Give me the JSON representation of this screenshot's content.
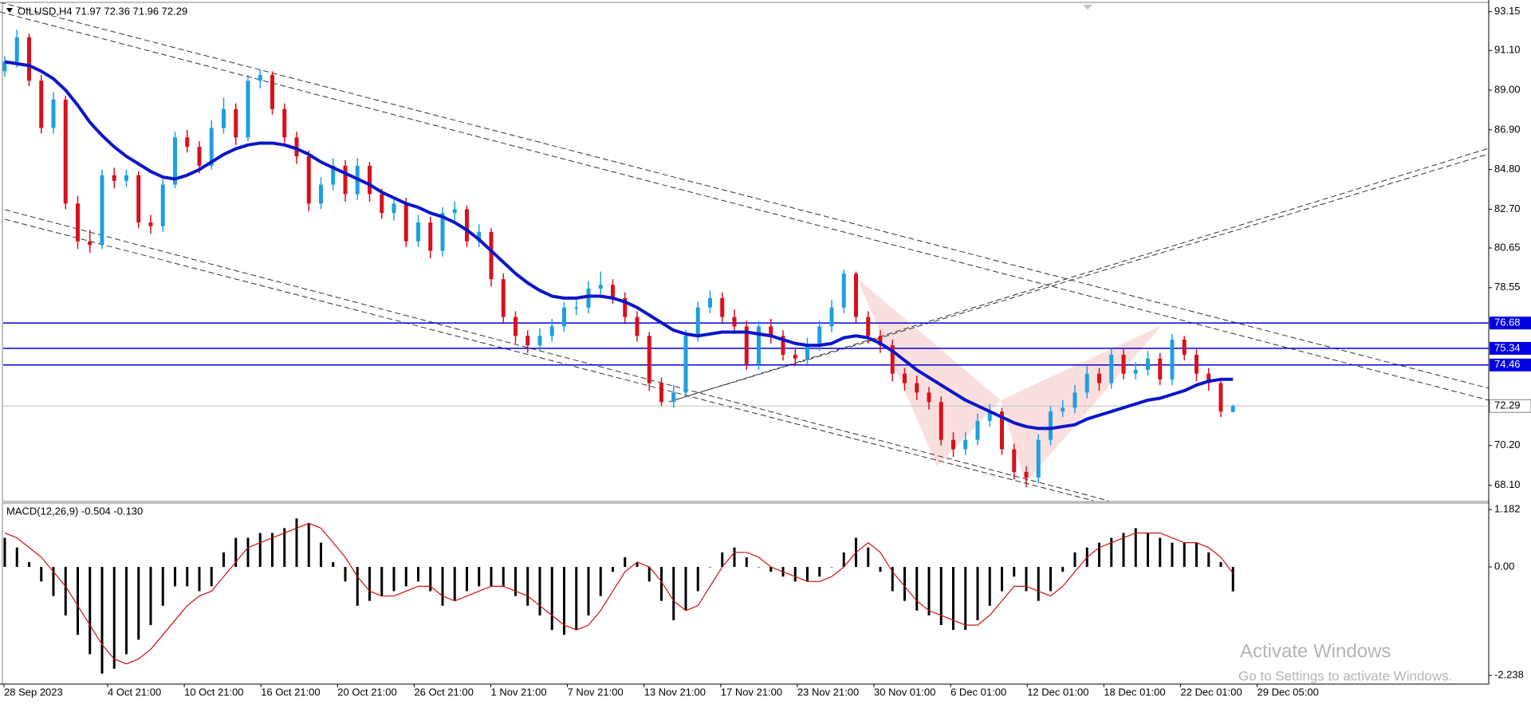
{
  "chart_data": {
    "type": "candlestick",
    "title": "OILUSD,H4  71.97 72.36 71.96 72.29",
    "up_color": "#1e9fe0",
    "down_color": "#d8101c",
    "ma_color": "#0a16c8",
    "candles": {
      "open": [
        90.0,
        90.5,
        91.8,
        89.5,
        87,
        88.5,
        83,
        81,
        80.8,
        84.5,
        84.2,
        84.5,
        82,
        81.8,
        84,
        86.5,
        86,
        85,
        87,
        88,
        86.5,
        89.5,
        89.8,
        88,
        86.5,
        85.5,
        83,
        84,
        85,
        83.5,
        85,
        83.5,
        82.5,
        83,
        81,
        82,
        80.5,
        82.5,
        82.7,
        81,
        81.5,
        79,
        77,
        76,
        75.5,
        76,
        76.5,
        77.5,
        77.5,
        78.5,
        78.7,
        78,
        77,
        76,
        73.5,
        72.5,
        73,
        76,
        77.5,
        78,
        77,
        76.5,
        74.5,
        76.5,
        76,
        75,
        74.8,
        75.5,
        76.5,
        77.5,
        79.3,
        77,
        76,
        75.5,
        74,
        73.5,
        73,
        72.5,
        70.5,
        70,
        70.5,
        71.5,
        72,
        70,
        68.8,
        68.5,
        70.5,
        72,
        72.2,
        73,
        74,
        73.5,
        75,
        74,
        74.2,
        74.8,
        73.7,
        75.8,
        75,
        74,
        73.5,
        71.97
      ],
      "high": [
        90.8,
        92.2,
        92.0,
        89.8,
        88.9,
        88.7,
        83.4,
        81.6,
        84.8,
        84.9,
        84.8,
        84.7,
        82.4,
        84.3,
        86.8,
        86.9,
        86.3,
        87.4,
        88.6,
        88.3,
        89.8,
        90.1,
        90.0,
        88.3,
        86.8,
        85.8,
        84.4,
        85.4,
        85.3,
        85.4,
        85.2,
        83.8,
        83.4,
        83.3,
        82.4,
        82.3,
        82.8,
        83.1,
        82.9,
        81.9,
        81.7,
        79.3,
        77.3,
        76.3,
        76.4,
        76.9,
        77.8,
        77.9,
        78.9,
        79.4,
        79.0,
        78.3,
        77.3,
        76.2,
        73.8,
        73.4,
        76.3,
        77.8,
        78.4,
        78.3,
        77.4,
        76.8,
        76.8,
        76.9,
        76.3,
        75.3,
        75.9,
        76.8,
        77.9,
        79.5,
        79.4,
        77.3,
        76.3,
        75.8,
        74.3,
        73.9,
        73.3,
        72.8,
        70.9,
        70.9,
        71.9,
        72.4,
        72.2,
        70.3,
        69.1,
        70.8,
        72.3,
        72.6,
        73.4,
        74.4,
        74.3,
        75.3,
        75.3,
        74.6,
        75.2,
        75.1,
        76.1,
        76.0,
        75.3,
        74.3,
        73.7,
        72.36
      ],
      "low": [
        89.7,
        90.2,
        89.2,
        86.7,
        86.7,
        82.7,
        80.6,
        80.4,
        80.6,
        83.8,
        83.9,
        81.7,
        81.4,
        81.5,
        83.8,
        85.7,
        84.6,
        84.8,
        86.7,
        86.1,
        86.3,
        89.1,
        87.7,
        86.2,
        85.1,
        82.6,
        82.7,
        83.7,
        83.1,
        83.2,
        83.1,
        82.2,
        82.1,
        80.7,
        80.7,
        80.1,
        80.2,
        82.1,
        80.7,
        80.7,
        78.6,
        76.7,
        75.6,
        75.1,
        75.2,
        75.7,
        76.2,
        77.1,
        77.2,
        78.2,
        77.7,
        76.7,
        75.7,
        73.1,
        72.3,
        72.2,
        72.8,
        75.7,
        77.2,
        76.7,
        76.1,
        74.2,
        74.2,
        75.6,
        74.7,
        74.4,
        74.5,
        75.2,
        76.2,
        77.2,
        76.7,
        75.6,
        75.1,
        73.6,
        73.1,
        72.6,
        72.1,
        70.2,
        69.6,
        69.7,
        70.2,
        71.2,
        69.7,
        68.4,
        68.0,
        68.2,
        70.2,
        71.7,
        71.9,
        72.7,
        73.1,
        73.2,
        73.7,
        73.7,
        73.9,
        73.4,
        73.4,
        74.7,
        73.6,
        73.1,
        71.7,
        71.96
      ],
      "close": [
        90.5,
        91.8,
        89.5,
        87,
        88.5,
        83,
        81,
        80.8,
        84.5,
        84.2,
        84.5,
        82,
        81.8,
        84,
        86.5,
        86,
        85,
        87,
        88,
        86.5,
        89.5,
        89.8,
        88,
        86.5,
        85.5,
        83,
        84,
        85,
        83.5,
        85,
        83.5,
        82.5,
        83,
        81,
        82,
        80.5,
        82.5,
        82.7,
        81,
        81.5,
        79,
        77,
        76,
        75.5,
        76,
        76.5,
        77.5,
        77.5,
        78.5,
        78.7,
        78,
        77,
        76,
        73.5,
        72.5,
        73,
        76,
        77.5,
        78,
        77,
        76.5,
        74.5,
        76.5,
        76,
        75,
        74.8,
        75.5,
        76.5,
        77.5,
        79.3,
        77,
        76,
        75.5,
        74,
        73.5,
        73,
        72.5,
        70.5,
        70,
        70.5,
        71.5,
        72,
        70,
        68.8,
        68.5,
        70.5,
        72,
        72.2,
        73,
        74,
        73.5,
        75,
        74,
        74.2,
        74.8,
        73.7,
        75.8,
        75,
        74,
        73.5,
        72,
        72.29
      ]
    },
    "ma": [
      90.5,
      90.4,
      90.3,
      90.0,
      89.6,
      89.0,
      88.2,
      87.3,
      86.6,
      86.0,
      85.5,
      85.1,
      84.7,
      84.4,
      84.3,
      84.5,
      84.8,
      85.2,
      85.6,
      85.9,
      86.1,
      86.2,
      86.2,
      86.1,
      85.9,
      85.6,
      85.2,
      84.9,
      84.6,
      84.3,
      84.0,
      83.6,
      83.3,
      83.0,
      82.8,
      82.5,
      82.3,
      82.0,
      81.6,
      81.1,
      80.5,
      79.9,
      79.3,
      78.8,
      78.4,
      78.1,
      78.0,
      78.0,
      78.1,
      78.1,
      78.0,
      77.8,
      77.5,
      77.1,
      76.7,
      76.3,
      76.1,
      76.0,
      76.1,
      76.2,
      76.2,
      76.2,
      76.1,
      76.0,
      75.8,
      75.6,
      75.5,
      75.5,
      75.6,
      75.9,
      76.0,
      75.9,
      75.6,
      75.2,
      74.7,
      74.2,
      73.8,
      73.4,
      73.0,
      72.6,
      72.3,
      72.0,
      71.7,
      71.4,
      71.2,
      71.1,
      71.1,
      71.2,
      71.3,
      71.6,
      71.8,
      72.0,
      72.2,
      72.4,
      72.6,
      72.7,
      72.9,
      73.1,
      73.4,
      73.6,
      73.7,
      73.7
    ],
    "ylim": [
      67.28,
      93.6
    ],
    "yticks": [
      93.15,
      {
        "value": 91.1,
        "label": "91.10"
      },
      {
        "value": 89.0,
        "label": "89.00"
      },
      {
        "value": 86.9,
        "label": "86.90"
      },
      {
        "value": 84.8,
        "label": "84.80"
      },
      {
        "value": 82.7,
        "label": "82.70"
      },
      80.65,
      78.55,
      {
        "value": 70.2,
        "label": "70.20"
      },
      {
        "value": 68.1,
        "label": "68.10"
      }
    ],
    "hlines": [
      {
        "value": 76.68,
        "color": "#0000e0"
      },
      {
        "value": 75.34,
        "color": "#0000e0"
      },
      {
        "value": 74.46,
        "color": "#0000e0"
      }
    ],
    "macd": {
      "label": "MACD(12,26,9) -0.504 -0.130",
      "signal_color": "#d01010",
      "histogram": [
        0.6,
        0.4,
        0.1,
        -0.3,
        -0.6,
        -1.0,
        -1.4,
        -1.8,
        -2.2,
        -2.1,
        -1.8,
        -1.5,
        -1.2,
        -0.8,
        -0.4,
        -0.4,
        -0.5,
        -0.4,
        0.3,
        0.6,
        0.6,
        0.7,
        0.7,
        0.8,
        1.0,
        0.9,
        0.5,
        0.1,
        -0.3,
        -0.8,
        -0.7,
        -0.6,
        -0.5,
        -0.4,
        -0.3,
        -0.5,
        -0.8,
        -0.7,
        -0.5,
        -0.4,
        -0.4,
        -0.4,
        -0.6,
        -0.8,
        -1.0,
        -1.3,
        -1.4,
        -1.3,
        -1.0,
        -0.6,
        -0.1,
        0.2,
        0.1,
        -0.3,
        -0.7,
        -1.1,
        -0.9,
        -0.5,
        0.0,
        0.3,
        0.4,
        0.2,
        0.0,
        -0.1,
        -0.2,
        -0.3,
        -0.3,
        -0.2,
        0.0,
        0.3,
        0.6,
        0.4,
        -0.1,
        -0.5,
        -0.7,
        -0.9,
        -1.0,
        -1.2,
        -1.3,
        -1.3,
        -1.1,
        -0.8,
        -0.5,
        -0.2,
        -0.5,
        -0.7,
        -0.5,
        -0.1,
        0.3,
        0.4,
        0.5,
        0.6,
        0.7,
        0.8,
        0.7,
        0.6,
        0.5,
        0.5,
        0.5,
        0.3,
        0.1,
        -0.504
      ],
      "signal": [
        0.7,
        0.6,
        0.4,
        0.2,
        -0.1,
        -0.4,
        -0.8,
        -1.2,
        -1.6,
        -1.9,
        -2.0,
        -1.9,
        -1.7,
        -1.4,
        -1.1,
        -0.8,
        -0.6,
        -0.5,
        -0.2,
        0.1,
        0.4,
        0.5,
        0.6,
        0.7,
        0.8,
        0.9,
        0.8,
        0.5,
        0.2,
        -0.2,
        -0.5,
        -0.6,
        -0.6,
        -0.5,
        -0.4,
        -0.4,
        -0.6,
        -0.7,
        -0.6,
        -0.5,
        -0.4,
        -0.4,
        -0.5,
        -0.6,
        -0.8,
        -1.0,
        -1.2,
        -1.3,
        -1.2,
        -0.9,
        -0.5,
        -0.1,
        0.1,
        0.0,
        -0.3,
        -0.7,
        -0.9,
        -0.8,
        -0.4,
        0.0,
        0.3,
        0.3,
        0.2,
        0.0,
        -0.1,
        -0.2,
        -0.3,
        -0.3,
        -0.2,
        0.0,
        0.3,
        0.5,
        0.3,
        -0.1,
        -0.4,
        -0.7,
        -0.9,
        -1.0,
        -1.1,
        -1.2,
        -1.2,
        -1.0,
        -0.7,
        -0.4,
        -0.4,
        -0.5,
        -0.6,
        -0.4,
        -0.1,
        0.2,
        0.4,
        0.5,
        0.6,
        0.7,
        0.7,
        0.7,
        0.6,
        0.5,
        0.5,
        0.4,
        0.2,
        -0.13
      ],
      "ylim": [
        -2.4,
        1.3
      ],
      "yticks": [
        1.182,
        {
          "value": 0,
          "label": "0.00"
        },
        -2.238
      ]
    },
    "time_labels": [
      "28 Sep 2023",
      "4 Oct 21:00",
      "10 Oct 21:00",
      "16 Oct 21:00",
      "20 Oct 21:00",
      "26 Oct 21:00",
      "1 Nov 21:00",
      "7 Nov 21:00",
      "13 Nov 21:00",
      "17 Nov 21:00",
      "23 Nov 21:00",
      "30 Nov 01:00",
      "6 Dec 01:00",
      "12 Dec 01:00",
      "18 Dec 01:00",
      "22 Dec 01:00",
      "29 Dec 05:00"
    ]
  },
  "watermark": {
    "title": "Activate Windows",
    "subtitle": "Go to Settings to activate Windows."
  }
}
